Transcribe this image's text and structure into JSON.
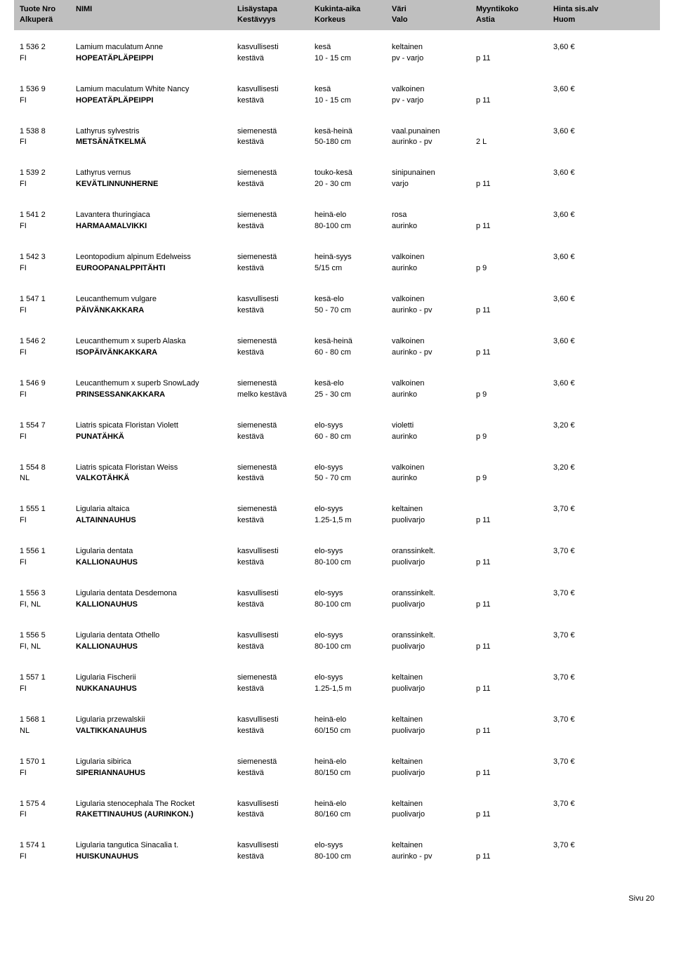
{
  "header": {
    "c1": {
      "l1": "Tuote Nro",
      "l2": "Alkuperä"
    },
    "c2": {
      "l1": "NIMI",
      "l2": ""
    },
    "c3": {
      "l1": "Lisäystapa",
      "l2": "Kestävyys"
    },
    "c4": {
      "l1": "Kukinta-aika",
      "l2": "Korkeus"
    },
    "c5": {
      "l1": "Väri",
      "l2": "Valo"
    },
    "c6": {
      "l1": "Myyntikoko",
      "l2": "Astia"
    },
    "c7": {
      "l1": "Hinta sis.alv",
      "l2": "Huom"
    }
  },
  "rows": [
    {
      "c1l1": "1 536 2",
      "c1l2": "FI",
      "c2l1": "Lamium maculatum Anne",
      "c2l2": "HOPEATÄPLÄPEIPPI",
      "c3l1": "kasvullisesti",
      "c3l2": "kestävä",
      "c4l1": "kesä",
      "c4l2": "10 - 15 cm",
      "c5l1": "keltainen",
      "c5l2": "pv - varjo",
      "c6l2": "p 11",
      "c7l1": "3,60 €"
    },
    {
      "c1l1": "1 536 9",
      "c1l2": "FI",
      "c2l1": "Lamium maculatum White Nancy",
      "c2l2": "HOPEATÄPLÄPEIPPI",
      "c3l1": "kasvullisesti",
      "c3l2": "kestävä",
      "c4l1": "kesä",
      "c4l2": "10 - 15 cm",
      "c5l1": "valkoinen",
      "c5l2": "pv - varjo",
      "c6l2": "p 11",
      "c7l1": "3,60 €"
    },
    {
      "c1l1": "1 538 8",
      "c1l2": "FI",
      "c2l1": "Lathyrus sylvestris",
      "c2l2": "METSÄNÄTKELMÄ",
      "c3l1": "siemenestä",
      "c3l2": "kestävä",
      "c4l1": "kesä-heinä",
      "c4l2": "50-180 cm",
      "c5l1": "vaal.punainen",
      "c5l2": "aurinko - pv",
      "c6l2": "2 L",
      "c7l1": "3,60 €"
    },
    {
      "c1l1": "1 539 2",
      "c1l2": "FI",
      "c2l1": "Lathyrus vernus",
      "c2l2": "KEVÄTLINNUNHERNE",
      "c3l1": "siemenestä",
      "c3l2": "kestävä",
      "c4l1": "touko-kesä",
      "c4l2": "20 - 30 cm",
      "c5l1": "sinipunainen",
      "c5l2": "varjo",
      "c6l2": "p 11",
      "c7l1": "3,60 €"
    },
    {
      "c1l1": "1 541 2",
      "c1l2": "FI",
      "c2l1": "Lavantera thuringiaca",
      "c2l2": "HARMAAMALVIKKI",
      "c3l1": "siemenestä",
      "c3l2": "kestävä",
      "c4l1": "heinä-elo",
      "c4l2": "80-100 cm",
      "c5l1": "rosa",
      "c5l2": "aurinko",
      "c6l2": "p 11",
      "c7l1": "3,60 €"
    },
    {
      "c1l1": "1 542 3",
      "c1l2": "FI",
      "c2l1": "Leontopodium alpinum  Edelweiss",
      "c2l2": "EUROOPANALPPITÄHTI",
      "c3l1": "siemenestä",
      "c3l2": "kestävä",
      "c4l1": "heinä-syys",
      "c4l2": "5/15 cm",
      "c5l1": "valkoinen",
      "c5l2": "aurinko",
      "c6l2": "p 9",
      "c7l1": "3,60 €"
    },
    {
      "c1l1": "1 547 1",
      "c1l2": "FI",
      "c2l1": "Leucanthemum  vulgare",
      "c2l2": "PÄIVÄNKAKKARA",
      "c3l1": "kasvullisesti",
      "c3l2": "kestävä",
      "c4l1": "kesä-elo",
      "c4l2": "50 - 70 cm",
      "c5l1": "valkoinen",
      "c5l2": "aurinko - pv",
      "c6l2": "p 11",
      "c7l1": "3,60 €"
    },
    {
      "c1l1": "1 546 2",
      "c1l2": "FI",
      "c2l1": "Leucanthemum x superb Alaska",
      "c2l2": "ISOPÄIVÄNKAKKARA",
      "c3l1": "siemenestä",
      "c3l2": "kestävä",
      "c4l1": "kesä-heinä",
      "c4l2": "60 - 80 cm",
      "c5l1": "valkoinen",
      "c5l2": "aurinko - pv",
      "c6l2": "p 11",
      "c7l1": "3,60 €"
    },
    {
      "c1l1": "1 546 9",
      "c1l2": "FI",
      "c2l1": "Leucanthemum x superb SnowLady",
      "c2l2": "PRINSESSANKAKKARA",
      "c3l1": "siemenestä",
      "c3l2": "melko kestävä",
      "c4l1": "kesä-elo",
      "c4l2": "25 - 30 cm",
      "c5l1": "valkoinen",
      "c5l2": "aurinko",
      "c6l2": "p 9",
      "c7l1": "3,60 €"
    },
    {
      "c1l1": "1 554 7",
      "c1l2": "FI",
      "c2l1": "Liatris spicata   Floristan Violett",
      "c2l2": "PUNATÄHKÄ",
      "c3l1": "siemenestä",
      "c3l2": "kestävä",
      "c4l1": "elo-syys",
      "c4l2": "60 - 80 cm",
      "c5l1": "violetti",
      "c5l2": "aurinko",
      "c6l2": "p 9",
      "c7l1": "3,20 €"
    },
    {
      "c1l1": "1 554 8",
      "c1l2": "NL",
      "c2l1": "Liatris spicata   Floristan Weiss",
      "c2l2": "VALKOTÄHKÄ",
      "c3l1": "siemenestä",
      "c3l2": "kestävä",
      "c4l1": "elo-syys",
      "c4l2": "50 - 70 cm",
      "c5l1": "valkoinen",
      "c5l2": "aurinko",
      "c6l2": "p 9",
      "c7l1": "3,20 €"
    },
    {
      "c1l1": "1 555 1",
      "c1l2": "FI",
      "c2l1": "Ligularia altaica",
      "c2l2": "ALTAINNAUHUS",
      "c3l1": "siemenestä",
      "c3l2": "kestävä",
      "c4l1": "elo-syys",
      "c4l2": "1.25-1,5 m",
      "c5l1": "keltainen",
      "c5l2": "puolivarjo",
      "c6l2": "p 11",
      "c7l1": "3,70 €"
    },
    {
      "c1l1": "1 556 1",
      "c1l2": "FI",
      "c2l1": "Ligularia dentata",
      "c2l2": "KALLIONAUHUS",
      "c3l1": "kasvullisesti",
      "c3l2": "kestävä",
      "c4l1": "elo-syys",
      "c4l2": "80-100 cm",
      "c5l1": "oranssinkelt.",
      "c5l2": "puolivarjo",
      "c6l2": "p 11",
      "c7l1": "3,70 €"
    },
    {
      "c1l1": "1 556 3",
      "c1l2": "FI, NL",
      "c2l1": "Ligularia dentata  Desdemona",
      "c2l2": "KALLIONAUHUS",
      "c3l1": "kasvullisesti",
      "c3l2": "kestävä",
      "c4l1": "elo-syys",
      "c4l2": "80-100 cm",
      "c5l1": "oranssinkelt.",
      "c5l2": "puolivarjo",
      "c6l2": "p 11",
      "c7l1": "3,70 €"
    },
    {
      "c1l1": "1 556 5",
      "c1l2": "FI, NL",
      "c2l1": "Ligularia dentata  Othello",
      "c2l2": "KALLIONAUHUS",
      "c3l1": "kasvullisesti",
      "c3l2": "kestävä",
      "c4l1": "elo-syys",
      "c4l2": "80-100 cm",
      "c5l1": "oranssinkelt.",
      "c5l2": "puolivarjo",
      "c6l2": "p 11",
      "c7l1": "3,70 €"
    },
    {
      "c1l1": "1 557 1",
      "c1l2": "FI",
      "c2l1": "Ligularia Fischerii",
      "c2l2": "NUKKANAUHUS",
      "c3l1": "siemenestä",
      "c3l2": "kestävä",
      "c4l1": "elo-syys",
      "c4l2": "1.25-1,5 m",
      "c5l1": "keltainen",
      "c5l2": "puolivarjo",
      "c6l2": "p 11",
      "c7l1": "3,70 €"
    },
    {
      "c1l1": "1 568 1",
      "c1l2": "NL",
      "c2l1": "Ligularia przewalskii",
      "c2l2": "VALTIKKANAUHUS",
      "c3l1": "kasvullisesti",
      "c3l2": "kestävä",
      "c4l1": "heinä-elo",
      "c4l2": "60/150 cm",
      "c5l1": "keltainen",
      "c5l2": "puolivarjo",
      "c6l2": "p 11",
      "c7l1": "3,70 €"
    },
    {
      "c1l1": "1 570 1",
      "c1l2": "FI",
      "c2l1": "Ligularia sibirica",
      "c2l2": "SIPERIANNAUHUS",
      "c3l1": "siemenestä",
      "c3l2": "kestävä",
      "c4l1": "heinä-elo",
      "c4l2": "80/150 cm",
      "c5l1": "keltainen",
      "c5l2": "puolivarjo",
      "c6l2": "p 11",
      "c7l1": "3,70 €"
    },
    {
      "c1l1": "1 575 4",
      "c1l2": "FI",
      "c2l1": "Ligularia stenocephala  The Rocket",
      "c2l2": "RAKETTINAUHUS  (AURINKON.)",
      "c3l1": "kasvullisesti",
      "c3l2": "kestävä",
      "c4l1": "heinä-elo",
      "c4l2": "80/160 cm",
      "c5l1": "keltainen",
      "c5l2": "puolivarjo",
      "c6l2": "p 11",
      "c7l1": "3,70 €"
    },
    {
      "c1l1": "1 574 1",
      "c1l2": "FI",
      "c2l1": "Ligularia tangutica   Sinacalia t.",
      "c2l2": "HUISKUNAUHUS",
      "c3l1": "kasvullisesti",
      "c3l2": "kestävä",
      "c4l1": "elo-syys",
      "c4l2": "80-100 cm",
      "c5l1": "keltainen",
      "c5l2": "aurinko - pv",
      "c6l2": "p 11",
      "c7l1": "3,70 €"
    }
  ],
  "footer": "Sivu 20"
}
